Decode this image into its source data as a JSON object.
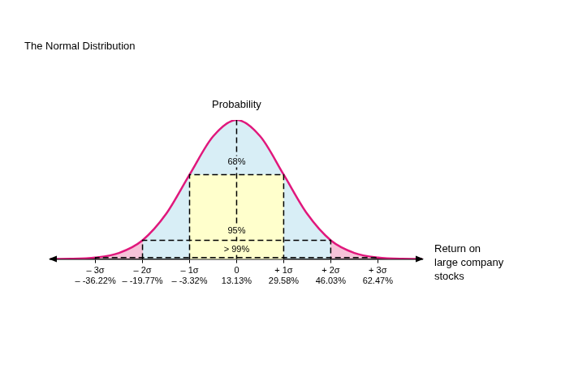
{
  "chart_data": {
    "type": "line",
    "title": "The Normal Distribution",
    "y_label": "Probability",
    "x_label": "Return on\nlarge company\nstocks",
    "color": "#e0187c",
    "x": [
      -52,
      -45,
      -36.22,
      -28,
      -19.77,
      -11.5,
      -3.32,
      4.9,
      13.13,
      21.4,
      29.58,
      37.8,
      46.03,
      54.3,
      62.47,
      71,
      78
    ],
    "values": [
      0.1,
      0.2,
      1.1,
      4.4,
      13.5,
      32.5,
      60.7,
      88.2,
      100,
      88.2,
      60.7,
      32.5,
      13.5,
      4.4,
      1.1,
      0.2,
      0.1
    ],
    "xlim": [
      -52,
      78
    ],
    "xticks": [
      {
        "value": -36.22,
        "label": "– 3σ\n– -36.22%"
      },
      {
        "value": -19.77,
        "label": "– 2σ\n– -19.77%"
      },
      {
        "value": -3.32,
        "label": "– 1σ\n– -3.32%"
      },
      {
        "value": 13.13,
        "label": "0\n13.13%"
      },
      {
        "value": 29.58,
        "label": "+ 1σ\n29.58%"
      },
      {
        "value": 46.03,
        "label": "+ 2σ\n46.03%"
      },
      {
        "value": 62.47,
        "label": "+ 3σ\n62.47%"
      }
    ],
    "ylim": [
      0,
      100
    ],
    "tick_labels": "x",
    "grid": false,
    "mean": 13.13,
    "intervals": [
      {
        "low": -3.32,
        "high": 29.58,
        "height": 60.7,
        "label": "68%",
        "label_y": 70
      },
      {
        "low": -19.77,
        "high": 46.03,
        "height": 13.5,
        "label": "95%",
        "label_y": 20
      },
      {
        "low": -36.22,
        "high": 62.47,
        "height": 1.1,
        "label": "> 99%",
        "label_y": 7
      }
    ]
  }
}
